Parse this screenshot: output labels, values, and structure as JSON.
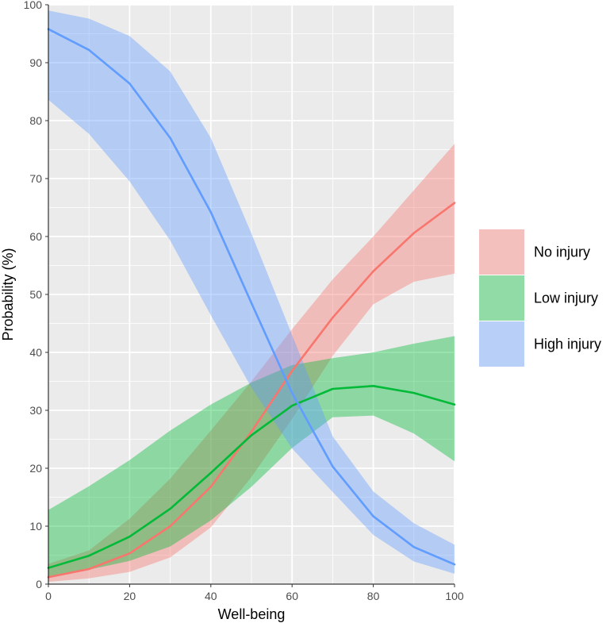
{
  "chart_data": {
    "type": "line",
    "xlabel": "Well-being",
    "ylabel": "Probability (%)",
    "xlim": [
      0,
      100
    ],
    "ylim": [
      0,
      100
    ],
    "xticks": [
      0,
      20,
      40,
      60,
      80,
      100
    ],
    "yticks": [
      0,
      10,
      20,
      30,
      40,
      50,
      60,
      70,
      80,
      90,
      100
    ],
    "grid": true,
    "legend_position": "right",
    "x": [
      0,
      10,
      20,
      30,
      40,
      50,
      60,
      70,
      80,
      90,
      100
    ],
    "series": [
      {
        "name": "No injury",
        "line_color": "#f8766d",
        "fill_color": "#f8766d",
        "values": [
          1.2,
          2.6,
          5.3,
          10.0,
          16.8,
          26.3,
          36.8,
          46.0,
          54.0,
          60.6,
          65.8
        ],
        "lower": [
          0.4,
          1.0,
          2.1,
          4.6,
          9.8,
          18.5,
          28.5,
          39.4,
          48.3,
          52.2,
          53.6
        ],
        "upper": [
          3.5,
          5.8,
          11.3,
          18.2,
          26.5,
          35.0,
          44.0,
          52.6,
          60.0,
          68.0,
          76.0
        ]
      },
      {
        "name": "Low injury",
        "line_color": "#00ba38",
        "fill_color": "#00ba38",
        "values": [
          2.8,
          4.9,
          8.2,
          13.0,
          19.2,
          25.7,
          30.8,
          33.7,
          34.2,
          33.0,
          31.0
        ],
        "lower": [
          1.2,
          2.5,
          4.0,
          6.5,
          11.0,
          16.8,
          23.5,
          28.8,
          29.1,
          26.0,
          21.2
        ],
        "upper": [
          12.8,
          16.9,
          21.4,
          26.5,
          31.0,
          34.8,
          37.8,
          39.0,
          40.0,
          41.5,
          42.8
        ]
      },
      {
        "name": "High injury",
        "line_color": "#619cff",
        "fill_color": "#619cff",
        "values": [
          95.8,
          92.2,
          86.4,
          77.0,
          64.2,
          48.5,
          33.0,
          20.3,
          11.7,
          6.4,
          3.4
        ],
        "lower": [
          83.6,
          77.7,
          69.5,
          59.3,
          46.4,
          33.9,
          23.4,
          15.9,
          8.5,
          3.9,
          1.8
        ],
        "upper": [
          99.0,
          97.6,
          94.6,
          88.5,
          77.0,
          60.5,
          43.0,
          25.5,
          16.0,
          10.5,
          6.8
        ]
      }
    ]
  }
}
